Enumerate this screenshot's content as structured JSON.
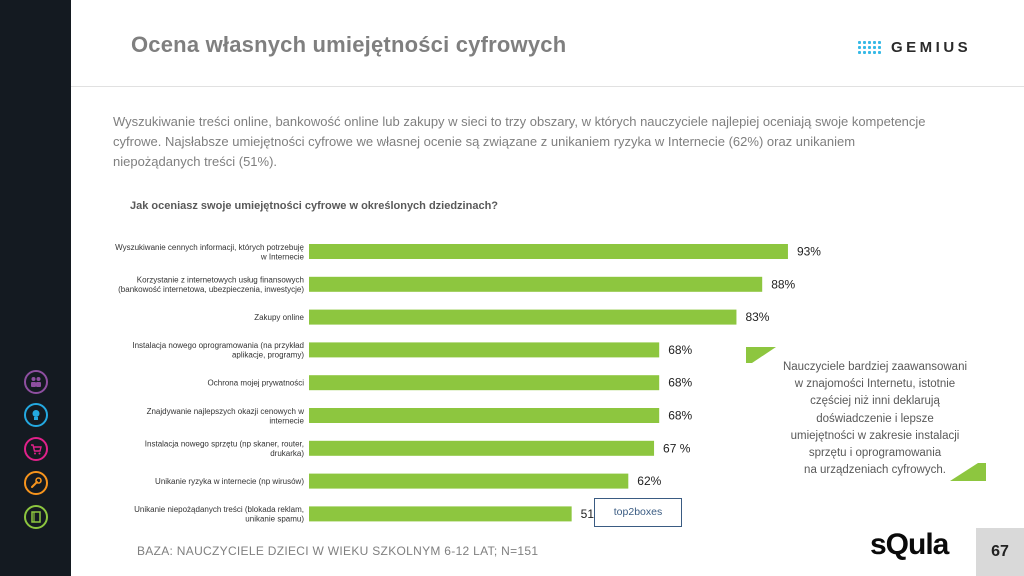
{
  "header": {
    "title": "Ocena własnych umiejętności cyfrowych",
    "logo_text": "GEMIUS"
  },
  "intro_text": "Wyszukiwanie treści online, bankowość online lub zakupy w sieci to trzy obszary, w których nauczyciele najlepiej oceniają swoje kompetencje cyfrowe. Najsłabsze umiejętności cyfrowe we własnej ocenie są związane z unikaniem ryzyka w Internecie (62%) oraz unikaniem niepożądanych treści (51%).",
  "question": "Jak oceniasz swoje umiejętności cyfrowe w określonych dziedzinach?",
  "chart_data": {
    "type": "bar",
    "orientation": "horizontal",
    "bar_color": "#8dc63f",
    "categories": [
      [
        "Wyszukiwanie cennych informacji, których potrzebuję",
        "w Internecie"
      ],
      [
        "Korzystanie z internetowych usług finansowych",
        "(bankowość internetowa, ubezpieczenia, inwestycje)"
      ],
      [
        "Zakupy online"
      ],
      [
        "Instalacja nowego oprogramowania (na przykład",
        "aplikacje, programy)"
      ],
      [
        "Ochrona mojej prywatności"
      ],
      [
        "Znajdywanie najlepszych okazji cenowych w",
        "internecie"
      ],
      [
        "Instalacja nowego sprzętu (np skaner, router,",
        "drukarka)"
      ],
      [
        "Unikanie ryzyka w internecie (np wirusów)"
      ],
      [
        "Unikanie niepożądanych treści (blokada reklam,",
        "unikanie spamu)"
      ]
    ],
    "values": [
      93,
      88,
      83,
      68,
      68,
      68,
      67,
      62,
      51
    ],
    "value_labels": [
      "93%",
      "88%",
      "83%",
      "68%",
      "68%",
      "68%",
      "67 %",
      "62%",
      "51%"
    ],
    "xlim": [
      0,
      100
    ],
    "grid": false,
    "legend": "none"
  },
  "tag_label": "top2boxes",
  "note_lines": [
    "Nauczyciele bardziej zaawansowani",
    "w znajomości Internetu, istotnie",
    "częściej niż inni deklarują",
    "doświadczenie i lepsze",
    "umiejętności w zakresie instalacji",
    "sprzętu i oprogramowania",
    "na urządzeniach cyfrowych."
  ],
  "footer": {
    "base_text": "BAZA: NAUCZYCIELE DZIECI W WIEKU SZKOLNYM 6-12 LAT; N=151",
    "brand": "sQula",
    "page_number": "67"
  },
  "sidebar": {
    "icons": [
      {
        "name": "people-icon",
        "color": "#8e4fa0"
      },
      {
        "name": "lightbulb-icon",
        "color": "#24a9e1"
      },
      {
        "name": "cart-icon",
        "color": "#e0218a"
      },
      {
        "name": "wrench-icon",
        "color": "#f7941d"
      },
      {
        "name": "book-icon",
        "color": "#8dc63f"
      }
    ]
  }
}
